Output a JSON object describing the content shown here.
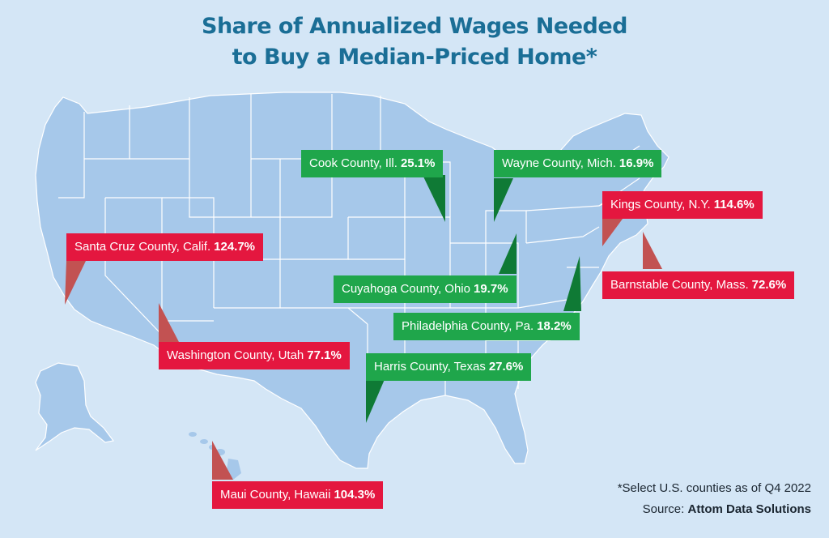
{
  "title": {
    "line1": "Share of Annualized Wages Needed",
    "line2": "to Buy a Median-Priced Home*"
  },
  "colors": {
    "background": "#d4e6f6",
    "land": "#a6c8ea",
    "borders": "#ffffff",
    "title": "#1a6e96",
    "green_callout": "#1fa64b",
    "green_pointer": "#0f7a35",
    "red_callout": "#e4173f",
    "red_pointer": "#c25252"
  },
  "callouts": [
    {
      "county": "Cook County, Ill.",
      "value": "25.1%",
      "color": "green"
    },
    {
      "county": "Wayne County, Mich.",
      "value": "16.9%",
      "color": "green"
    },
    {
      "county": "Kings County, N.Y.",
      "value": "114.6%",
      "color": "red"
    },
    {
      "county": "Santa Cruz County, Calif.",
      "value": "124.7%",
      "color": "red"
    },
    {
      "county": "Barnstable County, Mass.",
      "value": "72.6%",
      "color": "red"
    },
    {
      "county": "Cuyahoga County, Ohio",
      "value": "19.7%",
      "color": "green"
    },
    {
      "county": "Philadelphia County, Pa.",
      "value": "18.2%",
      "color": "green"
    },
    {
      "county": "Washington County, Utah",
      "value": "77.1%",
      "color": "red"
    },
    {
      "county": "Harris County, Texas",
      "value": "27.6%",
      "color": "green"
    },
    {
      "county": "Maui County, Hawaii",
      "value": "104.3%",
      "color": "red"
    }
  ],
  "footnote": {
    "note": "*Select U.S. counties as of Q4 2022",
    "source_label": "Source: ",
    "source_name": "Attom Data Solutions"
  }
}
